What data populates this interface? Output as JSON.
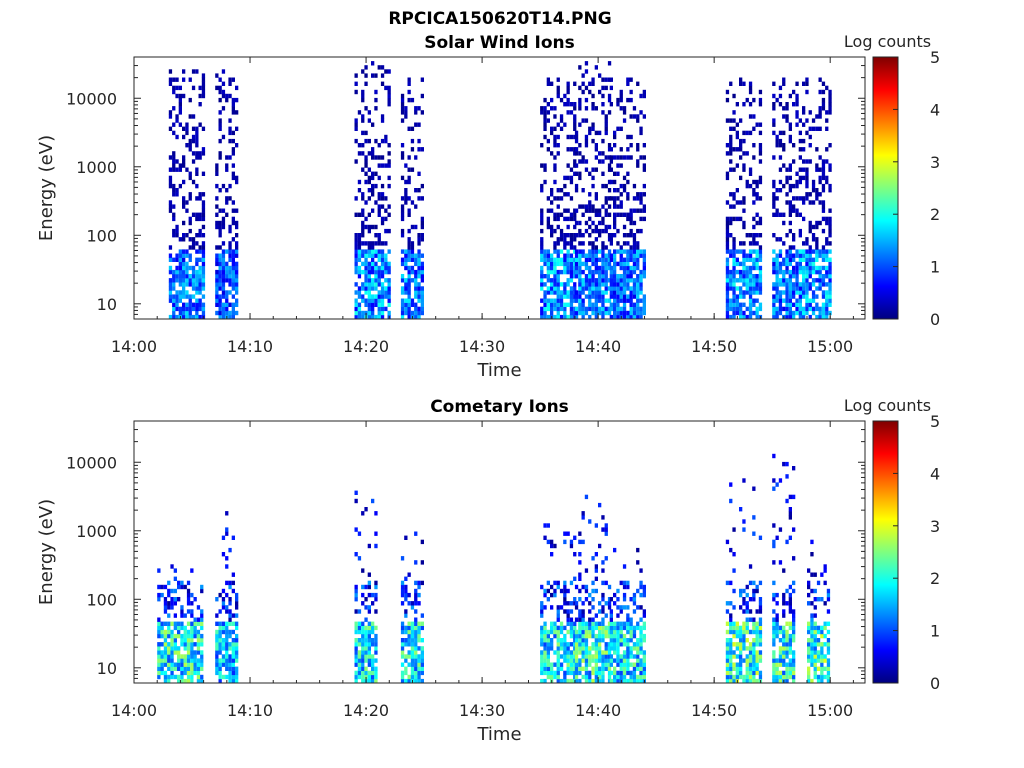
{
  "figure_title": "RPCICA150620T14.PNG",
  "colorscale": {
    "name": "jet",
    "min": 0,
    "max": 5,
    "colors": [
      "#00007f",
      "#0000ff",
      "#007fff",
      "#00ffff",
      "#7fff7f",
      "#ffff00",
      "#ff7f00",
      "#ff0000",
      "#7f0000"
    ]
  },
  "chart_data": [
    {
      "type": "heatmap",
      "title": "Solar Wind Ions",
      "xlabel": "Time",
      "ylabel": "Energy (eV)",
      "y_scale": "log",
      "xlim": [
        "14:00",
        "15:03"
      ],
      "ylim": [
        6,
        40000
      ],
      "x_ticks": [
        "14:00",
        "14:10",
        "14:20",
        "14:30",
        "14:40",
        "14:50",
        "15:00"
      ],
      "y_ticks": [
        "10",
        "100",
        "1000",
        "10000"
      ],
      "colorbar": {
        "label": "Log counts",
        "ticks": [
          "0",
          "1",
          "2",
          "3",
          "4",
          "5"
        ]
      },
      "bursts": [
        {
          "start": "14:03",
          "end": "14:06",
          "max_energy_ev": 20000,
          "low_energy_counts": 1.8
        },
        {
          "start": "14:07",
          "end": "14:09",
          "max_energy_ev": 20000,
          "low_energy_counts": 1.5
        },
        {
          "start": "14:19",
          "end": "14:22",
          "max_energy_ev": 25000,
          "low_energy_counts": 2.0
        },
        {
          "start": "14:23",
          "end": "14:25",
          "max_energy_ev": 15000,
          "low_energy_counts": 1.8
        },
        {
          "start": "14:35",
          "end": "14:38",
          "max_energy_ev": 15000,
          "low_energy_counts": 2.0
        },
        {
          "start": "14:38",
          "end": "14:41",
          "max_energy_ev": 25000,
          "low_energy_counts": 1.8
        },
        {
          "start": "14:41",
          "end": "14:44",
          "max_energy_ev": 15000,
          "low_energy_counts": 1.7
        },
        {
          "start": "14:51",
          "end": "14:54",
          "max_energy_ev": 15000,
          "low_energy_counts": 2.0
        },
        {
          "start": "14:55",
          "end": "14:57",
          "max_energy_ev": 15000,
          "low_energy_counts": 1.7
        },
        {
          "start": "14:57",
          "end": "15:00",
          "max_energy_ev": 15000,
          "low_energy_counts": 2.0
        }
      ]
    },
    {
      "type": "heatmap",
      "title": "Cometary Ions",
      "xlabel": "Time",
      "ylabel": "Energy (eV)",
      "y_scale": "log",
      "xlim": [
        "14:00",
        "15:03"
      ],
      "ylim": [
        6,
        40000
      ],
      "x_ticks": [
        "14:00",
        "14:10",
        "14:20",
        "14:30",
        "14:40",
        "14:50",
        "15:00"
      ],
      "y_ticks": [
        "10",
        "100",
        "1000",
        "10000"
      ],
      "colorbar": {
        "label": "Log counts",
        "ticks": [
          "0",
          "1",
          "2",
          "3",
          "4",
          "5"
        ]
      },
      "bursts": [
        {
          "start": "14:02",
          "end": "14:06",
          "max_energy_ev": 300,
          "low_energy_counts": 2.8
        },
        {
          "start": "14:07",
          "end": "14:09",
          "max_energy_ev": 1500,
          "low_energy_counts": 2.3
        },
        {
          "start": "14:19",
          "end": "14:21",
          "max_energy_ev": 4000,
          "low_energy_counts": 2.6
        },
        {
          "start": "14:23",
          "end": "14:25",
          "max_energy_ev": 700,
          "low_energy_counts": 2.6
        },
        {
          "start": "14:35",
          "end": "14:38",
          "max_energy_ev": 900,
          "low_energy_counts": 2.6
        },
        {
          "start": "14:38",
          "end": "14:41",
          "max_energy_ev": 2500,
          "low_energy_counts": 2.8
        },
        {
          "start": "14:41",
          "end": "14:44",
          "max_energy_ev": 400,
          "low_energy_counts": 2.6
        },
        {
          "start": "14:51",
          "end": "14:54",
          "max_energy_ev": 4000,
          "low_energy_counts": 3.0
        },
        {
          "start": "14:55",
          "end": "14:57",
          "max_energy_ev": 12000,
          "low_energy_counts": 2.8
        },
        {
          "start": "14:58",
          "end": "15:00",
          "max_energy_ev": 500,
          "low_energy_counts": 3.0
        }
      ]
    }
  ]
}
